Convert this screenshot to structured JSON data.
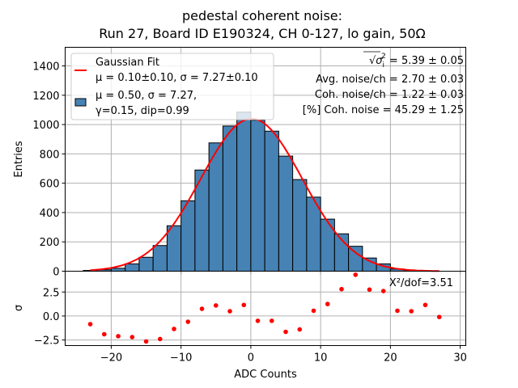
{
  "title_line1": "pedestal coherent noise:",
  "title_line2": "Run 27, Board ID E190324, CH 0-127, lo gain, 50Ω",
  "chart_data": [
    {
      "type": "bar",
      "panel": "histogram",
      "xlabel": "",
      "ylabel": "Entries",
      "xlim": [
        -26.6,
        30.8
      ],
      "ylim": [
        0,
        1527
      ],
      "grid": true,
      "bin_width": 2,
      "bin_left_edges": [
        -24,
        -22,
        -20,
        -18,
        -16,
        -14,
        -12,
        -10,
        -8,
        -6,
        -4,
        -2,
        0,
        2,
        4,
        6,
        8,
        10,
        12,
        14,
        16,
        18,
        20,
        22
      ],
      "values": [
        5,
        10,
        20,
        50,
        95,
        175,
        310,
        480,
        690,
        875,
        990,
        1085,
        1030,
        955,
        785,
        625,
        505,
        355,
        255,
        170,
        90,
        50,
        15,
        5
      ],
      "bar_color": "#4682b4",
      "xticks": [
        -20,
        -10,
        0,
        10,
        20,
        30
      ],
      "yticks": [
        0,
        200,
        400,
        600,
        800,
        1000,
        1200,
        1400
      ],
      "ytick_labels": [
        "0",
        "200",
        "400",
        "600",
        "800",
        "1000",
        "1200",
        "1400"
      ],
      "fit": {
        "name": "Gaussian Fit",
        "type": "line",
        "color": "#ff0000",
        "mu": 0.1,
        "sigma": 7.27,
        "amplitude": 1040,
        "x_range": [
          -23,
          27
        ]
      },
      "legend": {
        "placement": "top-left",
        "entries": [
          {
            "marker": "line",
            "color": "#ff0000",
            "lines": [
              "Gaussian Fit",
              "μ = 0.10±0.10, σ = 7.27±0.10"
            ]
          },
          {
            "marker": "patch",
            "color": "#4682b4",
            "lines": [
              "μ = 0.50, σ = 7.27,",
              "γ=0.15, dip=0.99"
            ]
          }
        ]
      },
      "annotations": [
        {
          "prefix": "√σ",
          "sup": "2",
          "sub": "i",
          "text": " = 5.39 ± 0.05"
        },
        {
          "text": "Avg. noise/ch = 2.70 ± 0.03"
        },
        {
          "text": "Coh. noise/ch = 1.22 ± 0.03"
        },
        {
          "text": "[%] Coh. noise = 45.29  ± 1.25"
        }
      ]
    },
    {
      "type": "scatter",
      "panel": "residuals",
      "xlabel": "ADC Counts",
      "ylabel": "σ",
      "xlim": [
        -26.6,
        30.8
      ],
      "ylim": [
        -3.08,
        4.67
      ],
      "grid": true,
      "color": "#ff0000",
      "x": [
        -23,
        -21,
        -19,
        -17,
        -15,
        -13,
        -11,
        -9,
        -7,
        -5,
        -3,
        -1,
        1,
        3,
        5,
        7,
        9,
        11,
        13,
        15,
        17,
        19,
        21,
        23,
        25,
        27
      ],
      "y": [
        -0.85,
        -1.9,
        -2.1,
        -2.2,
        -2.65,
        -2.4,
        -1.35,
        -0.6,
        0.75,
        1.1,
        0.5,
        1.15,
        -0.5,
        -0.5,
        -1.65,
        -1.4,
        0.55,
        1.25,
        2.8,
        4.3,
        2.75,
        2.6,
        0.55,
        0.5,
        1.15,
        -0.1
      ],
      "xticks": [
        -20,
        -10,
        0,
        10,
        20,
        30
      ],
      "xtick_labels": [
        "−20",
        "−10",
        "0",
        "10",
        "20",
        "30"
      ],
      "yticks": [
        -2.5,
        0.0,
        2.5
      ],
      "ytick_labels": [
        "−2.5",
        "0.0",
        "2.5"
      ],
      "annotation": "X²/dof=3.51"
    }
  ]
}
